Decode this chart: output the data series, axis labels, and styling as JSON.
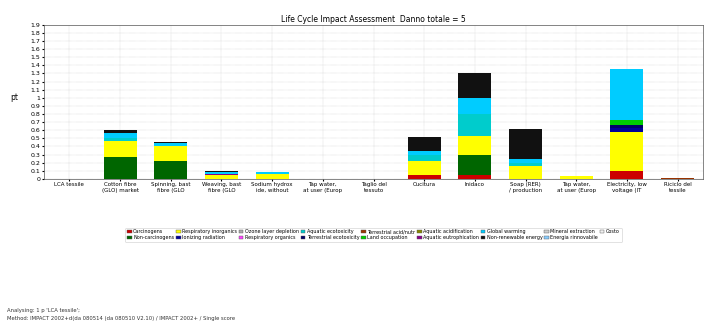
{
  "categories": [
    "LCA tessile",
    "Cotton fibre\n(GLO) market",
    "Spinning, bast\nfibre (GLO",
    "Weaving, bast\nfibre (GLO",
    "Sodium hydrox\nide, without",
    "Tap water,\nat user (Europ",
    "Taglio del\ntessuto",
    "Cucitura",
    "Inidaco",
    "Soap (RER)\n/ production",
    "Tap water,\nat user (Europ",
    "Electricity, low\nvoltage (IT",
    "Riciclo del\ntessile"
  ],
  "legend_labels": [
    "Carcinogens",
    "Non-carcinogens",
    "Respiratory inorganics",
    "Ionizing radiation",
    "Ozone layer depletion",
    "Respiratory organics",
    "Aquatic ecotoxicity",
    "Terrestrial ecotoxicity",
    "Terrestrial acid/nutr",
    "Land occupation",
    "Aquatic acidification",
    "Aquatic eutrophication",
    "Global warming",
    "Non-renewable energy",
    "Mineral extraction",
    "Energia rinnovabile",
    "Costo"
  ],
  "legend_colors": [
    "#cc0000",
    "#006600",
    "#ffff00",
    "#000099",
    "#aaaaaa",
    "#ff44ff",
    "#00cccc",
    "#000066",
    "#993300",
    "#00cc00",
    "#888800",
    "#880088",
    "#00ccff",
    "#111111",
    "#cccccc",
    "#88ccff",
    "#f0f0f0"
  ],
  "ylim": [
    0,
    1.9
  ],
  "ytick_max": 19,
  "ylabel": "pt",
  "bar_data": {
    "Carcinogens": [
      0.0,
      0.0,
      0.0,
      0.0,
      0.0,
      0.0,
      0.0,
      0.05,
      0.05,
      0.0,
      0.0,
      0.1,
      0.0
    ],
    "Non-carcinogens": [
      0.0,
      0.27,
      0.22,
      0.0,
      0.0,
      0.0,
      0.0,
      0.0,
      0.25,
      0.0,
      0.0,
      0.0,
      0.0
    ],
    "Respiratory inorganics": [
      0.0,
      0.2,
      0.19,
      0.05,
      0.06,
      0.0,
      0.0,
      0.17,
      0.23,
      0.16,
      0.04,
      0.48,
      0.0
    ],
    "Ionizing radiation": [
      0.0,
      0.0,
      0.0,
      0.0,
      0.0,
      0.0,
      0.0,
      0.0,
      0.0,
      0.0,
      0.0,
      0.05,
      0.0
    ],
    "Ozone layer depletion": [
      0.0,
      0.0,
      0.0,
      0.0,
      0.0,
      0.0,
      0.0,
      0.0,
      0.0,
      0.0,
      0.0,
      0.0,
      0.0
    ],
    "Respiratory organics": [
      0.0,
      0.0,
      0.0,
      0.0,
      0.0,
      0.0,
      0.0,
      0.0,
      0.0,
      0.0,
      0.0,
      0.0,
      0.0
    ],
    "Aquatic ecotoxicity": [
      0.0,
      0.04,
      0.0,
      0.0,
      0.0,
      0.0,
      0.0,
      0.07,
      0.27,
      0.03,
      0.0,
      0.0,
      0.0
    ],
    "Terrestrial ecotoxicity": [
      0.0,
      0.0,
      0.0,
      0.0,
      0.0,
      0.0,
      0.0,
      0.0,
      0.0,
      0.0,
      0.0,
      0.04,
      0.0
    ],
    "Terrestrial acid/nutr": [
      0.0,
      0.0,
      0.0,
      0.0,
      0.0,
      0.0,
      0.0,
      0.0,
      0.0,
      0.0,
      0.0,
      0.0,
      0.01
    ],
    "Land occupation": [
      0.0,
      0.0,
      0.0,
      0.0,
      0.0,
      0.0,
      0.0,
      0.0,
      0.0,
      0.0,
      0.0,
      0.05,
      0.0
    ],
    "Aquatic acidification": [
      0.0,
      0.0,
      0.0,
      0.0,
      0.0,
      0.0,
      0.0,
      0.0,
      0.0,
      0.0,
      0.0,
      0.0,
      0.0
    ],
    "Aquatic eutrophication": [
      0.0,
      0.0,
      0.0,
      0.01,
      0.0,
      0.0,
      0.0,
      0.0,
      0.0,
      0.0,
      0.0,
      0.0,
      0.0
    ],
    "Global warming": [
      0.0,
      0.05,
      0.03,
      0.02,
      0.02,
      0.0,
      0.0,
      0.05,
      0.2,
      0.05,
      0.0,
      0.63,
      0.0
    ],
    "Non-renewable energy": [
      0.0,
      0.04,
      0.01,
      0.02,
      0.01,
      0.0,
      0.0,
      0.18,
      0.3,
      0.38,
      0.0,
      0.0,
      0.0
    ],
    "Mineral extraction": [
      0.0,
      0.0,
      0.0,
      0.0,
      0.0,
      0.0,
      0.0,
      0.0,
      0.0,
      0.0,
      0.0,
      0.0,
      0.0
    ],
    "Energia rinnovabile": [
      0.0,
      0.0,
      0.0,
      0.0,
      0.0,
      0.0,
      0.0,
      0.0,
      0.0,
      0.0,
      0.0,
      0.0,
      0.0
    ],
    "Costo": [
      0.0,
      0.0,
      0.0,
      0.0,
      0.0,
      0.0,
      0.0,
      0.0,
      0.0,
      0.0,
      0.0,
      0.0,
      0.0
    ]
  },
  "title": "Life Cycle Impact Assessment  Danno totale = 5",
  "footnote1": "Analysing: 1 p 'LCA tessile';",
  "footnote2": "Method: IMPACT 2002+d(da 080514 (da 080510 V2.10) / IMPACT 2002+ / Single score"
}
